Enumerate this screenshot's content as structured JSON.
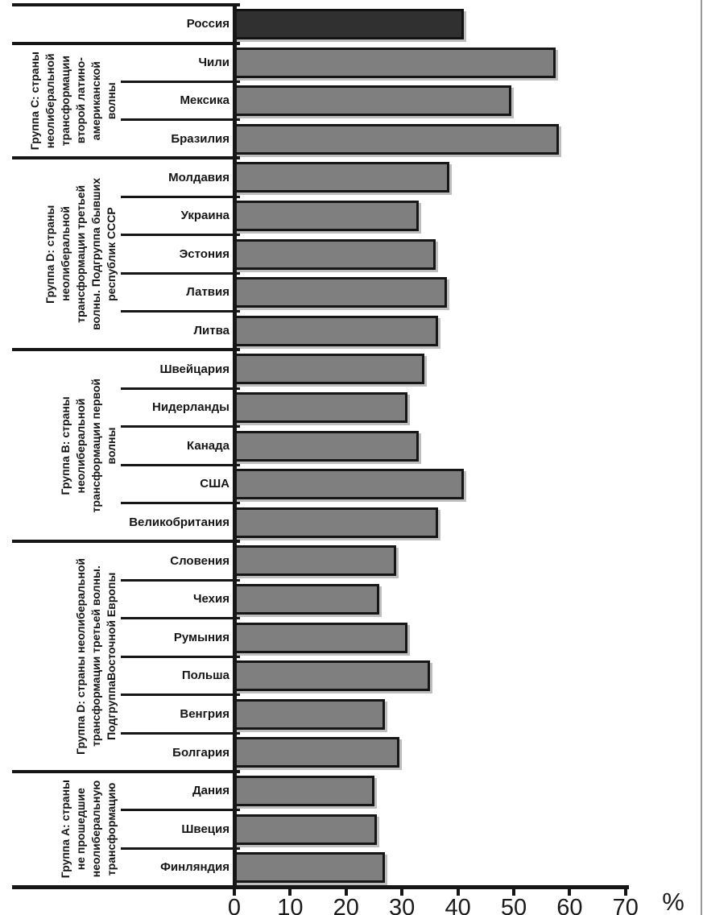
{
  "chart_data": {
    "type": "bar",
    "orientation": "horizontal",
    "title": "",
    "xlabel": "%",
    "ylabel": "",
    "xlim": [
      0,
      70
    ],
    "x_ticks": [
      0,
      10,
      20,
      30,
      40,
      50,
      60,
      70
    ],
    "grid": false,
    "legend": false,
    "bar_color": "#7f7f7f",
    "highlight_bar_color": "#303030",
    "groups": [
      {
        "label": "",
        "countries": [
          {
            "name": "Россия",
            "value": 41,
            "highlight": true
          }
        ]
      },
      {
        "label": "Группа C: страны\nнеолиберальной\nтрансформации\nвторой латино-\nамериканской\nволны",
        "countries": [
          {
            "name": "Чили",
            "value": 57.5
          },
          {
            "name": "Мексика",
            "value": 49.5
          },
          {
            "name": "Бразилия",
            "value": 58
          }
        ]
      },
      {
        "label": "Группа D: страны\nнеолиберальной\nтрансформации третьей\nволны. Подгруппа бывших\nреспублик СССР",
        "countries": [
          {
            "name": "Молдавия",
            "value": 38.5
          },
          {
            "name": "Украина",
            "value": 33
          },
          {
            "name": "Эстония",
            "value": 36
          },
          {
            "name": "Латвия",
            "value": 38
          },
          {
            "name": "Литва",
            "value": 36.5
          }
        ]
      },
      {
        "label": "Группа B: страны\nнеолиберальной\nтрансформации первой\nволны",
        "countries": [
          {
            "name": "Швейцария",
            "value": 34
          },
          {
            "name": "Нидерланды",
            "value": 31
          },
          {
            "name": "Канада",
            "value": 33
          },
          {
            "name": "США",
            "value": 41
          },
          {
            "name": "Великобритания",
            "value": 36.5
          }
        ]
      },
      {
        "label": "Группа D: страны неолиберальной\nтрансформации третьей волны.\nПодгруппаВосточной Европы",
        "countries": [
          {
            "name": "Словения",
            "value": 29
          },
          {
            "name": "Чехия",
            "value": 26
          },
          {
            "name": "Румыния",
            "value": 31
          },
          {
            "name": "Польша",
            "value": 35
          },
          {
            "name": "Венгрия",
            "value": 27
          },
          {
            "name": "Болгария",
            "value": 29.5
          }
        ]
      },
      {
        "label": "Группа A: страны\nне прошедшие\nнеолиберальную\nтрансформацию",
        "countries": [
          {
            "name": "Дания",
            "value": 25
          },
          {
            "name": "Швеция",
            "value": 25.5
          },
          {
            "name": "Финляндия",
            "value": 27
          }
        ]
      }
    ]
  },
  "colors": {
    "line": "#161616",
    "text": "#161616",
    "axis_text": "#1b1b1b",
    "page_edge": "#9a9a9a",
    "background": "#ffffff"
  }
}
